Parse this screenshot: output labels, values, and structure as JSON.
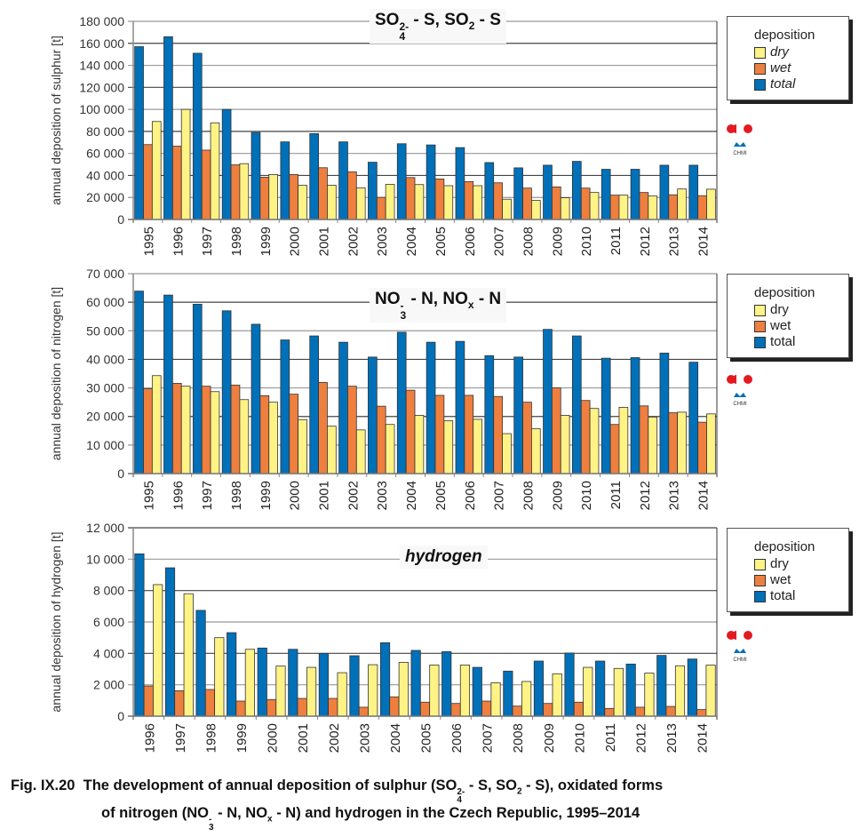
{
  "figure_caption": {
    "label": "Fig. IX.20",
    "line1_prefix": "The development of annual deposition of sulphur (SO",
    "line1_sup": "2-",
    "line1_sub": "4",
    "line1_mid": " - S, SO",
    "line1_sub2": "2",
    "line1_suffix": "  - S), oxidated forms",
    "line2_prefix": "of nitrogen (NO",
    "line2_sup": "-",
    "line2_sub": "3",
    "line2_mid": "  - N, NO",
    "line2_sub2": "x",
    "line2_suffix": "  - N) and hydrogen in the Czech Republic, 1995–2014"
  },
  "colors": {
    "dry": "#fff386",
    "wet": "#ee7f3f",
    "total": "#0070b9",
    "logo_red": "#e21b23",
    "logo_blue": "#0070b9"
  },
  "logo_text": "CHMI",
  "chart_data": [
    {
      "type": "bar",
      "title": "SO4 2- - S, SO2 - S",
      "title_parts": {
        "a": "SO",
        "a_sup": "2-",
        "a_sub": "4",
        "b": " - S, SO",
        "b_sub": "2",
        "c": " - S"
      },
      "title_italic": false,
      "xlabel": "",
      "ylabel": "annual deposition of sulphur [t]",
      "ylim": [
        0,
        180000
      ],
      "yticks": [
        0,
        20000,
        40000,
        60000,
        80000,
        100000,
        120000,
        140000,
        160000,
        180000
      ],
      "ytick_labels": [
        "0",
        "20 000",
        "40 000",
        "60 000",
        "80 000",
        "100 000",
        "120 000",
        "140 000",
        "160 000",
        "180 000"
      ],
      "grid": true,
      "legend": {
        "title": "deposition",
        "labels": [
          "dry",
          "wet",
          "total"
        ],
        "italic": true,
        "placement": "right"
      },
      "categories": [
        "1995",
        "1996",
        "1997",
        "1998",
        "1999",
        "2000",
        "2001",
        "2002",
        "2003",
        "2004",
        "2005",
        "2006",
        "2007",
        "2008",
        "2009",
        "2010",
        "2011",
        "2012",
        "2013",
        "2014"
      ],
      "series": [
        {
          "name": "total",
          "values": [
            157000,
            166000,
            151000,
            100000,
            79000,
            70500,
            78000,
            70500,
            52000,
            68800,
            67700,
            65300,
            51700,
            46900,
            49300,
            52800,
            45600,
            45600,
            49300,
            49300
          ]
        },
        {
          "name": "wet",
          "values": [
            68000,
            66600,
            63000,
            49600,
            38400,
            40800,
            47000,
            43200,
            20100,
            38100,
            36800,
            34400,
            33300,
            28500,
            29600,
            28500,
            22100,
            24500,
            22400,
            21600
          ]
        },
        {
          "name": "dry",
          "values": [
            89000,
            100000,
            87800,
            50700,
            40800,
            31100,
            31100,
            28700,
            31900,
            31700,
            30700,
            30700,
            18400,
            17300,
            19700,
            24500,
            22100,
            21300,
            27700,
            27500
          ]
        }
      ]
    },
    {
      "type": "bar",
      "title": "NO3 - - N, NOx - N",
      "title_parts": {
        "a": "NO",
        "a_sup": "-",
        "a_sub": "3",
        "b": " - N, NO",
        "b_sub": "x",
        "c": " - N"
      },
      "title_italic": false,
      "xlabel": "",
      "ylabel": "annual deposition of nitrogen [t]",
      "ylim": [
        0,
        70000
      ],
      "yticks": [
        0,
        10000,
        20000,
        30000,
        40000,
        50000,
        60000,
        70000
      ],
      "ytick_labels": [
        "0",
        "10 000",
        "20 000",
        "30 000",
        "40 000",
        "50 000",
        "60 000",
        "70 000"
      ],
      "grid": true,
      "legend": {
        "title": "deposition",
        "labels": [
          "dry",
          "wet",
          "total"
        ],
        "italic": false,
        "placement": "right"
      },
      "categories": [
        "1995",
        "1996",
        "1997",
        "1998",
        "1999",
        "2000",
        "2001",
        "2002",
        "2003",
        "2004",
        "2005",
        "2006",
        "2007",
        "2008",
        "2009",
        "2010",
        "2011",
        "2012",
        "2013",
        "2014"
      ],
      "series": [
        {
          "name": "total",
          "values": [
            63900,
            62500,
            59300,
            57000,
            52300,
            46800,
            48200,
            46000,
            40800,
            49500,
            46000,
            46300,
            41300,
            40800,
            50500,
            48200,
            40400,
            40600,
            42200,
            39000
          ]
        },
        {
          "name": "wet",
          "values": [
            29700,
            31600,
            30600,
            31000,
            27300,
            27800,
            31900,
            30600,
            23600,
            29200,
            27400,
            27400,
            27000,
            25000,
            30000,
            25600,
            17200,
            23700,
            21300,
            18000
          ]
        },
        {
          "name": "dry",
          "values": [
            34300,
            30600,
            28700,
            25900,
            25000,
            18900,
            16600,
            15300,
            17200,
            20400,
            18500,
            19000,
            14000,
            15700,
            20400,
            22800,
            23200,
            19800,
            21500,
            20900
          ]
        }
      ]
    },
    {
      "type": "bar",
      "title": "hydrogen",
      "title_parts": {
        "a": "hydrogen",
        "a_sup": "",
        "a_sub": "",
        "b": "",
        "b_sub": "",
        "c": ""
      },
      "title_italic": true,
      "xlabel": "",
      "ylabel": "annual deposition of hydrogen [t]",
      "ylim": [
        0,
        12000
      ],
      "yticks": [
        0,
        2000,
        4000,
        6000,
        8000,
        10000,
        12000
      ],
      "ytick_labels": [
        "0",
        "2 000",
        "4 000",
        "6 000",
        "8 000",
        "10 000",
        "12 000"
      ],
      "grid": true,
      "legend": {
        "title": "deposition",
        "labels": [
          "dry",
          "wet",
          "total"
        ],
        "italic": false,
        "placement": "right"
      },
      "categories": [
        "1996",
        "1997",
        "1998",
        "1999",
        "2000",
        "2001",
        "2002",
        "2003",
        "2004",
        "2005",
        "2006",
        "2007",
        "2008",
        "2009",
        "2010",
        "2011",
        "2012",
        "2013",
        "2014"
      ],
      "series": [
        {
          "name": "total",
          "values": [
            10340,
            9450,
            6740,
            5320,
            4340,
            4260,
            4000,
            3850,
            4680,
            4190,
            4110,
            3110,
            2870,
            3510,
            4020,
            3510,
            3320,
            3870,
            3640
          ]
        },
        {
          "name": "wet",
          "values": [
            1920,
            1620,
            1700,
            960,
            1060,
            1130,
            1130,
            570,
            1230,
            890,
            810,
            960,
            640,
            810,
            890,
            490,
            570,
            620,
            420
          ]
        },
        {
          "name": "dry",
          "values": [
            8380,
            7800,
            5000,
            4260,
            3190,
            3110,
            2770,
            3280,
            3430,
            3260,
            3260,
            2130,
            2210,
            2700,
            3110,
            3040,
            2740,
            3210,
            3250
          ]
        }
      ]
    }
  ]
}
